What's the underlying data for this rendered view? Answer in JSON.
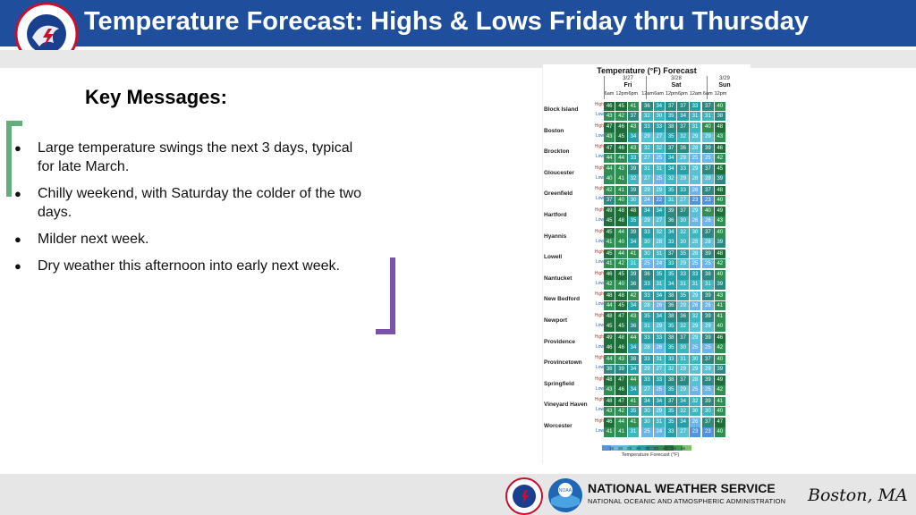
{
  "header": {
    "title": "Temperature Forecast: Highs & Lows Friday thru Thursday",
    "logo_text": "NATIONAL WEATHER SERVICE",
    "bg_color": "#1f4f9c"
  },
  "key_messages": {
    "title": "Key Messages:",
    "bullets": [
      "Large temperature swings the next 3 days, typical for late March.",
      "Chilly weekend, with Saturday the colder of the two days.",
      "Milder next week.",
      "Dry weather this afternoon into early next week."
    ]
  },
  "forecast_table": {
    "title": "Temperature (°F) Forecast",
    "dates": [
      "3/27",
      "3/28",
      "3/29"
    ],
    "days": [
      "Fri",
      "Sat",
      "Sun"
    ],
    "times": [
      "6am",
      "12pm",
      "6pm",
      "12am",
      "6am",
      "12pm",
      "6pm",
      "12am",
      "6am",
      "12pm"
    ],
    "high_label": "High",
    "low_label": "Low",
    "stations": [
      {
        "name": "Block Island",
        "high": [
          46,
          45,
          41,
          36,
          34,
          37,
          37,
          33,
          37,
          40
        ],
        "low": [
          43,
          42,
          37,
          32,
          30,
          35,
          34,
          31,
          31,
          38
        ]
      },
      {
        "name": "Boston",
        "high": [
          47,
          46,
          43,
          33,
          33,
          38,
          37,
          31,
          40,
          48
        ],
        "low": [
          43,
          45,
          34,
          29,
          27,
          35,
          32,
          29,
          29,
          43
        ]
      },
      {
        "name": "Brockton",
        "high": [
          47,
          46,
          43,
          32,
          32,
          37,
          36,
          28,
          39,
          46
        ],
        "low": [
          44,
          44,
          33,
          27,
          25,
          34,
          29,
          25,
          25,
          42
        ]
      },
      {
        "name": "Gloucester",
        "high": [
          44,
          43,
          39,
          31,
          31,
          34,
          33,
          29,
          37,
          45
        ],
        "low": [
          40,
          41,
          32,
          27,
          25,
          32,
          29,
          28,
          28,
          39
        ]
      },
      {
        "name": "Greenfield",
        "high": [
          42,
          41,
          39,
          29,
          29,
          35,
          33,
          26,
          37,
          48
        ],
        "low": [
          37,
          40,
          30,
          24,
          22,
          31,
          27,
          23,
          23,
          40
        ]
      },
      {
        "name": "Hartford",
        "high": [
          49,
          48,
          48,
          34,
          34,
          39,
          37,
          29,
          40,
          49
        ],
        "low": [
          45,
          48,
          35,
          29,
          27,
          36,
          30,
          26,
          26,
          43
        ]
      },
      {
        "name": "Hyannis",
        "high": [
          45,
          44,
          39,
          33,
          32,
          34,
          32,
          30,
          37,
          40
        ],
        "low": [
          41,
          40,
          34,
          30,
          28,
          33,
          30,
          28,
          28,
          39
        ]
      },
      {
        "name": "Lowell",
        "high": [
          45,
          44,
          41,
          30,
          31,
          37,
          35,
          28,
          39,
          48
        ],
        "low": [
          41,
          42,
          31,
          25,
          24,
          33,
          29,
          25,
          25,
          42
        ]
      },
      {
        "name": "Nantucket",
        "high": [
          46,
          45,
          39,
          36,
          35,
          35,
          33,
          33,
          38,
          40
        ],
        "low": [
          42,
          40,
          36,
          33,
          31,
          34,
          31,
          31,
          31,
          39
        ]
      },
      {
        "name": "New Bedford",
        "high": [
          48,
          48,
          42,
          33,
          34,
          38,
          35,
          29,
          39,
          43
        ],
        "low": [
          44,
          45,
          34,
          28,
          26,
          36,
          29,
          26,
          26,
          41
        ]
      },
      {
        "name": "Newport",
        "high": [
          48,
          47,
          43,
          35,
          34,
          38,
          36,
          32,
          39,
          41
        ],
        "low": [
          45,
          45,
          36,
          31,
          29,
          35,
          32,
          29,
          29,
          40
        ]
      },
      {
        "name": "Providence",
        "high": [
          49,
          48,
          44,
          33,
          33,
          38,
          37,
          29,
          39,
          46
        ],
        "low": [
          46,
          46,
          34,
          28,
          26,
          35,
          30,
          25,
          25,
          42
        ]
      },
      {
        "name": "Provincetown",
        "high": [
          44,
          43,
          38,
          33,
          31,
          33,
          31,
          30,
          37,
          40
        ],
        "low": [
          38,
          39,
          34,
          29,
          27,
          32,
          29,
          29,
          29,
          39
        ]
      },
      {
        "name": "Springfield",
        "high": [
          48,
          47,
          44,
          33,
          33,
          38,
          37,
          28,
          39,
          49
        ],
        "low": [
          43,
          46,
          34,
          27,
          25,
          35,
          29,
          25,
          25,
          42
        ]
      },
      {
        "name": "Vineyard Haven",
        "high": [
          48,
          47,
          41,
          34,
          34,
          37,
          34,
          32,
          39,
          41
        ],
        "low": [
          43,
          42,
          35,
          30,
          29,
          35,
          32,
          30,
          30,
          40
        ]
      },
      {
        "name": "Worcester",
        "high": [
          46,
          44,
          41,
          30,
          31,
          35,
          34,
          26,
          37,
          47
        ],
        "low": [
          41,
          41,
          31,
          25,
          24,
          33,
          27,
          23,
          23,
          40
        ]
      }
    ],
    "colorbar_ticks": [
      "15",
      "20",
      "25",
      "30",
      "35",
      "40",
      "45",
      "50",
      "55"
    ],
    "colorbar_label": "Temperature Forecast (°F)"
  },
  "footer": {
    "agency_name": "NATIONAL WEATHER SERVICE",
    "agency_subtitle": "NATIONAL OCEANIC AND ATMOSPHERIC ADMINISTRATION",
    "office": "Boston, MA",
    "noaa_logo_text": "NOAA"
  }
}
